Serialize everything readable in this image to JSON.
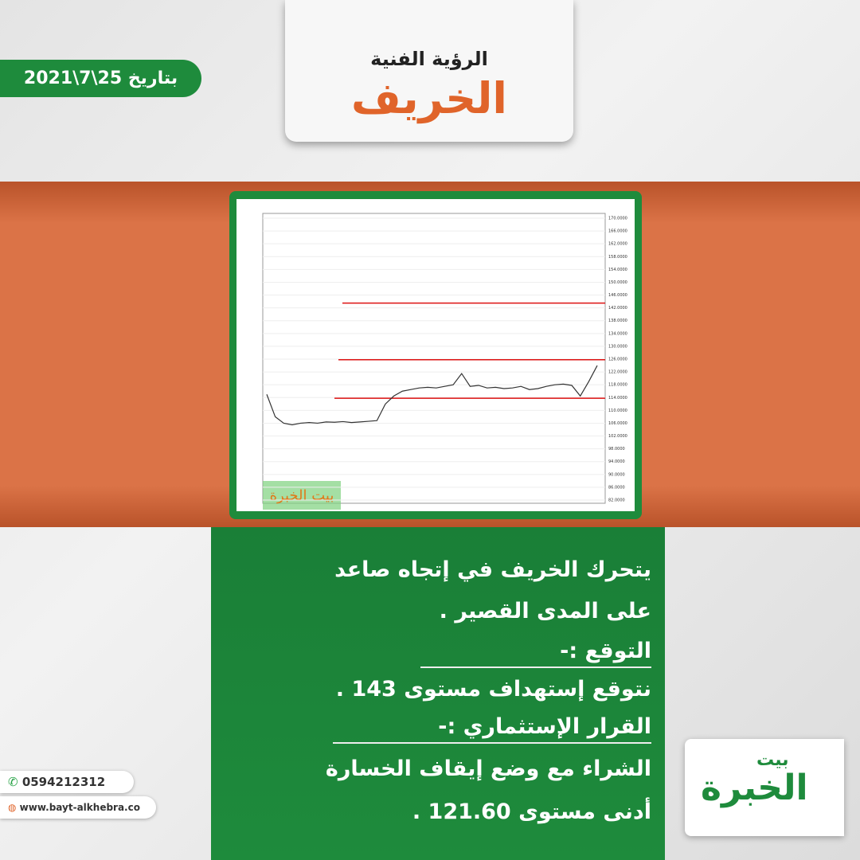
{
  "header": {
    "subtitle": "الرؤية الفنية",
    "title": "الخريف",
    "date": "بتاريخ 25\\7\\2021"
  },
  "chart_data": {
    "type": "line",
    "watermark": "بيت الخبرة",
    "series": [
      {
        "name": "الخريف",
        "color": "#333333",
        "values": [
          115,
          108,
          106,
          105.5,
          106,
          106.2,
          106,
          106.4,
          106.3,
          106.5,
          106.2,
          106.4,
          106.6,
          106.8,
          112,
          114.5,
          116,
          116.5,
          117,
          117.2,
          117,
          117.5,
          118,
          121.5,
          117.5,
          117.8,
          117,
          117.2,
          116.8,
          117,
          117.5,
          116.5,
          116.8,
          117.5,
          118,
          118.2,
          117.8,
          114.5,
          119,
          124
        ]
      }
    ],
    "levels": [
      {
        "value": 143.5,
        "color": "#dd1111"
      },
      {
        "value": 125.8,
        "color": "#dd1111"
      },
      {
        "value": 113.8,
        "color": "#dd1111"
      }
    ],
    "ylim": [
      82,
      170
    ],
    "yticks": [
      {
        "value": 82,
        "label": "82.0000"
      },
      {
        "value": 86,
        "label": "86.0000"
      },
      {
        "value": 90,
        "label": "90.0000"
      },
      {
        "value": 94,
        "label": "94.0000"
      },
      {
        "value": 98,
        "label": "98.0000"
      },
      {
        "value": 102,
        "label": "102.0000"
      },
      {
        "value": 106,
        "label": "106.0000"
      },
      {
        "value": 110,
        "label": "110.0000"
      },
      {
        "value": 114,
        "label": "114.0000"
      },
      {
        "value": 118,
        "label": "118.0000"
      },
      {
        "value": 122,
        "label": "122.0000"
      },
      {
        "value": 126,
        "label": "126.0000"
      },
      {
        "value": 130,
        "label": "130.0000"
      },
      {
        "value": 134,
        "label": "134.0000"
      },
      {
        "value": 138,
        "label": "138.0000"
      },
      {
        "value": 142,
        "label": "142.0000"
      },
      {
        "value": 146,
        "label": "146.0000"
      },
      {
        "value": 150,
        "label": "150.0000"
      },
      {
        "value": 154,
        "label": "154.0000"
      },
      {
        "value": 158,
        "label": "158.0000"
      },
      {
        "value": 162,
        "label": "162.0000"
      },
      {
        "value": 166,
        "label": "166.0000"
      },
      {
        "value": 170,
        "label": "170.0000"
      }
    ],
    "grid": true
  },
  "body": {
    "lines": [
      "يتحرك الخريف في إتجاه صاعد",
      "على المدى القصير .",
      "التوقع :-",
      "نتوقع إستهداف مستوى 143 .",
      "القرار الإستثماري :-",
      "الشراء مع وضع إيقاف الخسارة",
      "أدنى مستوى 121.60 ."
    ]
  },
  "contact": {
    "phone": "0594212312",
    "website": "www.bayt-alkhebra.co"
  },
  "logo": {
    "small": "بيت",
    "large": "الخبرة"
  }
}
